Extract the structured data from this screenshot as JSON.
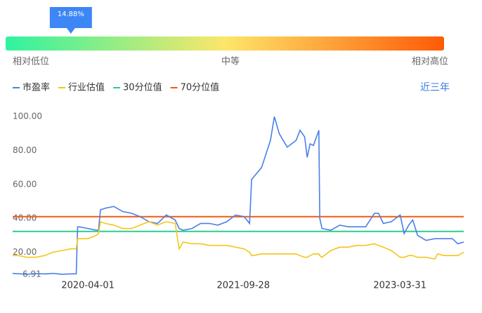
{
  "gauge": {
    "value": 14.88,
    "label": "14.88%",
    "lim": [
      0,
      100
    ],
    "low_label": "相对低位",
    "mid_label": "中等",
    "high_label": "相对高位"
  },
  "range_link": "近三年",
  "chart_data": {
    "type": "line",
    "grid": false,
    "xlim": [
      "2019-07-12",
      "2023-11-10"
    ],
    "xticks": [
      "2020-04-01",
      "2021-09-28",
      "2023-03-31"
    ],
    "ylim": [
      6.91,
      103
    ],
    "yticks": [
      6.91,
      {
        "value": 20,
        "label": "20.00"
      },
      {
        "value": 40,
        "label": "40.00"
      },
      {
        "value": 60,
        "label": "60.00"
      },
      {
        "value": 80,
        "label": "80.00"
      },
      {
        "value": 100,
        "label": "100.00"
      }
    ],
    "x": [
      "2019-07-12",
      "2019-08-01",
      "2019-09-01",
      "2019-10-01",
      "2019-11-01",
      "2019-12-01",
      "2020-01-01",
      "2020-02-01",
      "2020-02-20",
      "2020-02-25",
      "2020-03-01",
      "2020-04-01",
      "2020-05-01",
      "2020-05-08",
      "2020-05-15",
      "2020-06-01",
      "2020-07-01",
      "2020-08-01",
      "2020-09-01",
      "2020-10-01",
      "2020-11-01",
      "2020-12-01",
      "2021-01-01",
      "2021-02-01",
      "2021-02-15",
      "2021-03-01",
      "2021-04-01",
      "2021-05-01",
      "2021-06-01",
      "2021-07-01",
      "2021-08-01",
      "2021-09-01",
      "2021-10-01",
      "2021-10-20",
      "2021-10-27",
      "2021-11-01",
      "2021-12-01",
      "2022-01-01",
      "2022-01-15",
      "2022-02-01",
      "2022-03-01",
      "2022-04-01",
      "2022-04-15",
      "2022-05-01",
      "2022-05-10",
      "2022-05-20",
      "2022-06-01",
      "2022-06-20",
      "2022-06-23",
      "2022-07-01",
      "2022-08-01",
      "2022-09-01",
      "2022-10-01",
      "2022-11-01",
      "2022-12-01",
      "2023-01-01",
      "2023-01-15",
      "2023-02-01",
      "2023-03-01",
      "2023-04-01",
      "2023-04-15",
      "2023-05-01",
      "2023-05-15",
      "2023-06-01",
      "2023-07-01",
      "2023-08-01",
      "2023-08-10",
      "2023-09-01",
      "2023-10-01",
      "2023-10-20",
      "2023-11-10"
    ],
    "series": [
      {
        "name": "市盈率",
        "color": "#4a7fe8",
        "values": [
          7.5,
          7.3,
          7.0,
          7.4,
          7.2,
          7.5,
          7.0,
          7.2,
          7.3,
          35,
          35,
          34,
          33,
          33,
          45,
          46,
          47,
          44,
          43,
          41,
          38,
          37,
          42,
          39,
          34,
          33,
          34,
          37,
          37,
          36,
          38,
          42,
          41,
          37,
          63,
          64,
          70,
          86,
          100,
          90,
          82,
          86,
          92,
          88,
          76,
          84,
          83,
          92,
          40,
          34,
          33,
          36,
          35,
          35,
          35,
          43,
          43,
          37,
          38,
          42,
          31,
          36,
          39,
          30,
          27,
          28,
          28,
          28,
          28,
          25,
          26
        ]
      },
      {
        "name": "行业估值",
        "color": "#f5c518",
        "values": [
          18,
          18,
          17,
          17,
          18,
          20,
          21,
          22,
          22,
          28,
          28,
          28,
          30,
          31,
          38,
          37,
          36,
          34,
          34,
          36,
          38,
          36,
          38,
          37,
          22,
          26,
          25,
          25,
          24,
          24,
          24,
          23,
          22,
          20,
          18,
          18,
          19,
          19,
          19,
          19,
          19,
          19,
          18,
          17,
          17,
          18,
          19,
          19,
          18,
          17,
          21,
          23,
          23,
          24,
          24,
          25,
          24,
          23,
          21,
          17,
          17,
          18,
          18,
          17,
          17,
          16,
          19,
          18,
          18,
          18,
          20
        ]
      }
    ],
    "reference_lines": [
      {
        "name": "30分位值",
        "color": "#2ecc8f",
        "value": 32.3
      },
      {
        "name": "70分位值",
        "color": "#f05a14",
        "value": 41
      }
    ]
  }
}
